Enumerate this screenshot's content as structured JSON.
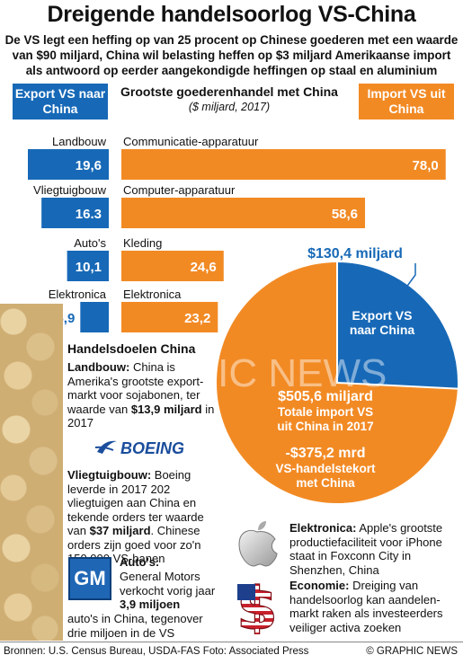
{
  "title": "Dreigende handelsoorlog VS-China",
  "intro": "De VS legt een heffing op van 25 procent op Chinese goederen met een waarde van $90 miljard, China wil belasting heffen op $3 miljard Amerikaanse import als antwoord op eerder aangekondigde heffingen op staal en aluminium",
  "legend": {
    "export": "Export VS naar China",
    "import": "Import VS uit China"
  },
  "colors": {
    "export": "#1769b7",
    "import": "#f28a24"
  },
  "chart_data": [
    {
      "type": "bar",
      "title": "Grootste goederenhandel met China",
      "subtitle": "($ miljard, 2017)",
      "series": [
        {
          "name": "Export VS naar China",
          "categories": [
            "Landbouw",
            "Vliegtuigbouw",
            "Auto's",
            "Elektronica"
          ],
          "values": [
            19.6,
            16.3,
            10.1,
            6.9
          ],
          "labels": [
            "19,6",
            "16.3",
            "10,1",
            "6,9"
          ]
        },
        {
          "name": "Import VS uit China",
          "categories": [
            "Communicatie-apparatuur",
            "Computer-apparatuur",
            "Kleding",
            "Elektronica"
          ],
          "values": [
            78.0,
            58.6,
            24.6,
            23.2
          ],
          "labels": [
            "78,0",
            "58,6",
            "24,6",
            "23,2"
          ]
        }
      ]
    },
    {
      "type": "pie",
      "slices": [
        {
          "label": "Export VS naar China",
          "value": 130.4,
          "value_label": "$130,4 miljard"
        },
        {
          "label": "Totale import VS uit China in 2017",
          "value": 505.6,
          "value_label": "$505,6 miljard"
        }
      ],
      "annotation": {
        "value": "-$375,2 mrd",
        "text": "VS-handelstekort met China"
      }
    }
  ],
  "sections": {
    "heading": "Handelsdoelen China",
    "landbouw": {
      "head": "Landbouw:",
      "text1": "China is Amerika's grootste export-markt voor sojabonen, ter waarde van",
      "bold": "$13,9 miljard",
      "text2": "in 2017"
    },
    "boeing_logo": "BOEING",
    "vliegtuig": {
      "head": "Vliegtuigbouw:",
      "text1": "Boeing leverde in 2017 202 vliegtuigen aan China en tekende orders ter waarde van",
      "bold": "$37 miljard",
      "text2": ". Chinese orders zijn goed voor zo'n 150.000 VS-banen"
    },
    "gm_logo": "GM",
    "autos": {
      "head": "Auto's:",
      "text1": "General Motors verkocht vorig jaar",
      "bold": "3,9 miljoen",
      "text2": "auto's in China, tegenover drie miljoen in de VS"
    },
    "elektronica": {
      "head": "Elektronica:",
      "text": "Apple's grootste productiefaciliteit voor iPhone staat in Foxconn City in Shenzhen, China"
    },
    "economie": {
      "head": "Economie:",
      "text": "Dreiging van handelsoorlog kan aandelen-markt raken als investeerders veiliger activa zoeken"
    }
  },
  "footer": {
    "sources": "Bronnen: U.S. Census Bureau, USDA-FAS   Foto: Associated Press",
    "credit": "© GRAPHIC NEWS"
  },
  "watermark": "GRAPHIC NEWS"
}
